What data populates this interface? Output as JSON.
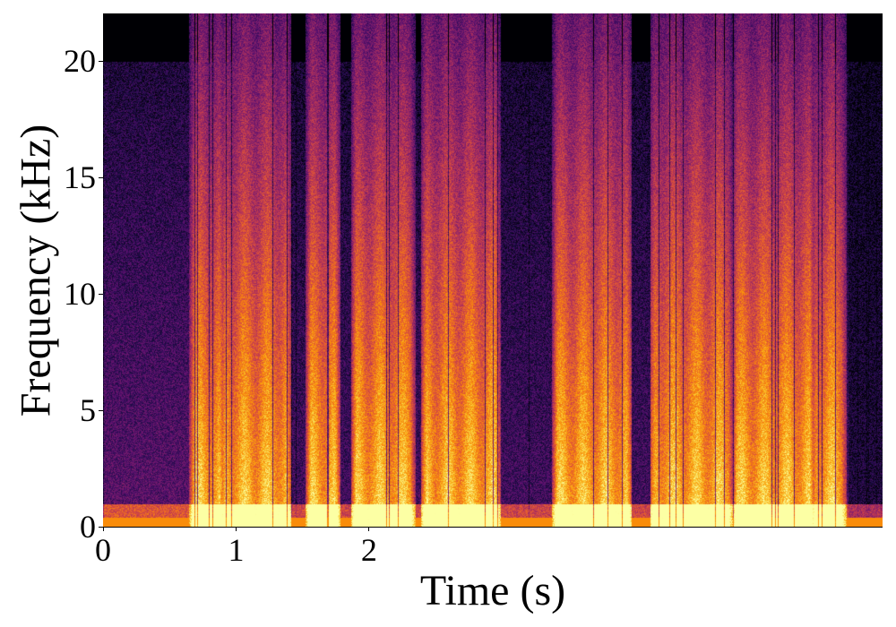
{
  "chart_data": {
    "type": "heatmap",
    "title": "",
    "xlabel": "Time (s)",
    "ylabel": "Frequency (kHz)",
    "xlim": [
      0,
      5.86
    ],
    "ylim": [
      0,
      22.05
    ],
    "xticks": [
      0,
      1,
      2
    ],
    "yticks": [
      0,
      5,
      10,
      15,
      20
    ],
    "colormap": "inferno",
    "grid": false,
    "active_segments_s": [
      [
        0.67,
        0.88
      ],
      [
        0.91,
        1.38
      ],
      [
        1.55,
        1.75
      ],
      [
        1.89,
        2.32
      ],
      [
        2.42,
        2.96
      ],
      [
        3.4,
        3.94
      ],
      [
        4.14,
        4.71
      ],
      [
        4.75,
        5.32
      ],
      [
        5.35,
        5.56
      ]
    ]
  }
}
